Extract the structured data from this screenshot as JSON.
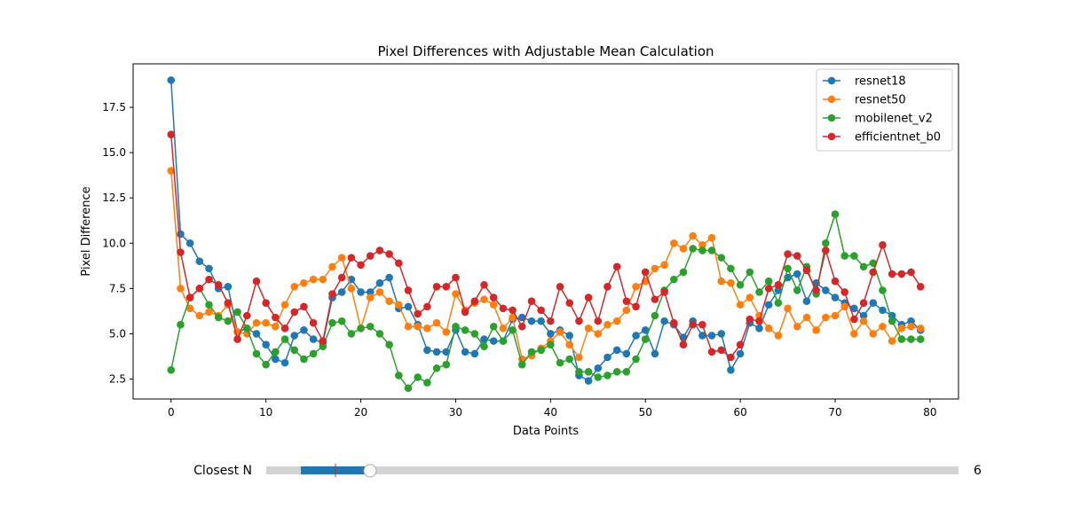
{
  "chart_data": {
    "type": "line",
    "title": "Pixel Differences with Adjustable Mean Calculation",
    "xlabel": "Data Points",
    "ylabel": "Pixel Difference",
    "xlim": [
      -4,
      83
    ],
    "ylim": [
      1.4,
      19.9
    ],
    "xticks": [
      0,
      10,
      20,
      30,
      40,
      50,
      60,
      70,
      80
    ],
    "yticks": [
      2.5,
      5.0,
      7.5,
      10.0,
      12.5,
      15.0,
      17.5
    ],
    "xtick_labels": [
      "0",
      "10",
      "20",
      "30",
      "40",
      "50",
      "60",
      "70",
      "80"
    ],
    "ytick_labels": [
      "2.5",
      "5.0",
      "7.5",
      "10.0",
      "12.5",
      "15.0",
      "17.5"
    ],
    "grid": false,
    "legend_position": "top-right",
    "series": [
      {
        "name": "resnet18",
        "color": "#1f77b4",
        "values": [
          19.0,
          10.5,
          10.0,
          9.0,
          8.6,
          7.5,
          7.6,
          5.1,
          5.3,
          5.0,
          4.4,
          3.6,
          3.4,
          4.9,
          5.2,
          4.7,
          4.5,
          7.0,
          7.3,
          8.0,
          7.3,
          7.3,
          7.8,
          8.1,
          6.4,
          6.5,
          5.5,
          4.1,
          4.0,
          4.0,
          5.2,
          4.0,
          3.9,
          4.7,
          4.6,
          4.6,
          5.8,
          5.9,
          5.7,
          5.7,
          5.0,
          5.2,
          4.9,
          2.7,
          2.4,
          3.1,
          3.7,
          4.1,
          3.9,
          4.9,
          5.2,
          3.9,
          5.7,
          5.5,
          4.8,
          5.7,
          4.9,
          4.9,
          5.0,
          3.0,
          3.9,
          5.6,
          5.3,
          6.6,
          7.4,
          8.1,
          8.3,
          6.8,
          7.8,
          7.4,
          7.0,
          6.7,
          6.4,
          6.0,
          6.7,
          6.3,
          6.0,
          5.5,
          5.7,
          5.2
        ]
      },
      {
        "name": "resnet50",
        "color": "#ff7f0e",
        "values": [
          14.0,
          7.5,
          6.4,
          6.0,
          6.2,
          6.0,
          6.6,
          5.1,
          5.0,
          5.6,
          5.6,
          5.4,
          6.6,
          7.6,
          7.8,
          8.0,
          8.0,
          8.7,
          9.2,
          7.5,
          5.3,
          7.0,
          7.3,
          6.8,
          6.6,
          5.4,
          5.4,
          5.3,
          5.6,
          5.1,
          7.2,
          6.3,
          6.7,
          6.9,
          6.6,
          5.3,
          5.9,
          3.6,
          3.8,
          4.2,
          4.6,
          5.1,
          4.4,
          3.7,
          5.3,
          5.0,
          5.5,
          5.7,
          6.3,
          7.6,
          7.9,
          8.6,
          8.8,
          10.0,
          9.7,
          10.4,
          9.9,
          10.3,
          7.9,
          7.8,
          6.6,
          7.0,
          6.0,
          5.3,
          4.9,
          6.4,
          5.4,
          5.9,
          5.2,
          5.9,
          6.0,
          6.5,
          5.0,
          5.7,
          5.0,
          5.4,
          4.6,
          5.3,
          5.4,
          5.3
        ]
      },
      {
        "name": "mobilenet_v2",
        "color": "#2ca02c",
        "values": [
          3.0,
          5.5,
          7.0,
          7.5,
          6.6,
          5.9,
          5.7,
          6.2,
          5.3,
          3.9,
          3.3,
          4.0,
          4.7,
          4.1,
          3.6,
          3.9,
          4.3,
          5.6,
          5.7,
          5.0,
          5.3,
          5.4,
          5.0,
          4.4,
          2.7,
          2.0,
          2.6,
          2.3,
          3.1,
          3.3,
          5.4,
          5.2,
          5.0,
          4.3,
          5.4,
          4.6,
          5.2,
          3.3,
          4.0,
          4.1,
          4.4,
          3.4,
          3.6,
          2.9,
          2.9,
          2.6,
          2.7,
          2.9,
          2.9,
          3.6,
          4.7,
          6.0,
          7.4,
          8.0,
          8.4,
          9.7,
          9.6,
          9.6,
          9.2,
          8.6,
          7.7,
          8.4,
          7.3,
          7.9,
          6.7,
          8.6,
          7.4,
          8.7,
          7.2,
          10.0,
          11.6,
          9.3,
          9.3,
          8.7,
          8.9,
          7.4,
          5.7,
          4.7,
          4.7,
          4.7
        ]
      },
      {
        "name": "efficientnet_b0",
        "color": "#d62728",
        "values": [
          16.0,
          9.5,
          7.0,
          7.5,
          8.0,
          7.7,
          6.7,
          4.7,
          6.0,
          7.9,
          6.7,
          5.9,
          5.3,
          6.2,
          6.5,
          5.6,
          4.6,
          7.2,
          8.1,
          9.2,
          8.8,
          9.3,
          9.6,
          9.4,
          8.9,
          7.4,
          6.1,
          6.5,
          7.6,
          7.6,
          8.1,
          6.2,
          6.8,
          7.7,
          7.0,
          6.4,
          6.3,
          5.4,
          6.8,
          6.3,
          5.7,
          7.6,
          6.7,
          5.7,
          7.0,
          5.7,
          7.6,
          8.7,
          6.8,
          6.5,
          8.4,
          6.9,
          7.3,
          5.6,
          4.4,
          5.5,
          5.5,
          4.0,
          4.1,
          3.7,
          4.4,
          5.8,
          5.7,
          7.5,
          7.7,
          9.4,
          9.3,
          8.5,
          7.4,
          9.6,
          7.9,
          7.3,
          5.8,
          6.7,
          8.4,
          9.9,
          8.3,
          8.3,
          8.4,
          7.6
        ]
      }
    ]
  },
  "slider": {
    "label": "Closest N",
    "value_text": "6",
    "min": 0,
    "max": 40,
    "value": 6,
    "range_fill_fraction_start": 0.05,
    "marker_fraction": 0.1,
    "track_color": "#d3d3d3",
    "fill_color": "#1f77b4",
    "marker_color": "#d62728"
  }
}
